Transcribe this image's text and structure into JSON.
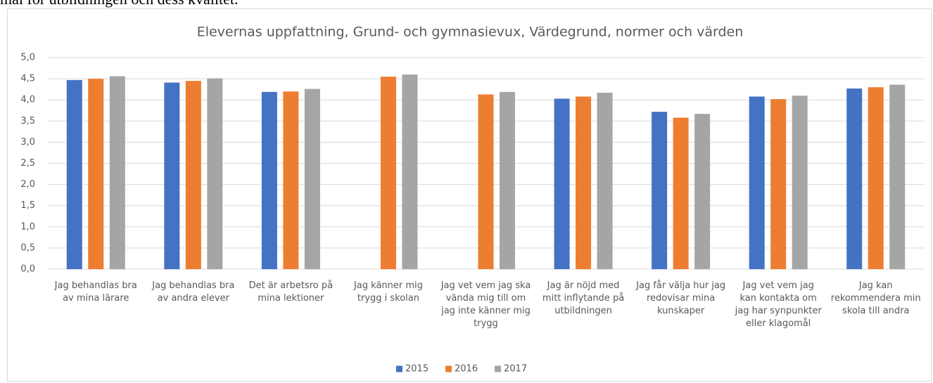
{
  "document": {
    "text": "mål för utbildningen och dess kvalitet."
  },
  "chart_data": {
    "type": "bar",
    "title": "Elevernas uppfattning, Grund- och gymnasievux, Värdegrund, normer och värden",
    "categories": [
      "Jag behandlas bra av mina lärare",
      "Jag behandlas bra av andra elever",
      "Det är arbetsro på mina lektioner",
      "Jag känner mig trygg i skolan",
      "Jag vet vem jag ska vända mig till om jag inte känner mig trygg",
      "Jag är nöjd med mitt inflytande på utbildningen",
      "Jag får välja hur jag redovisar mina kunskaper",
      "Jag vet vem jag kan kontakta om jag har synpunkter eller klagomål",
      "Jag kan rekommendera min skola till andra"
    ],
    "series": [
      {
        "name": "2015",
        "color": "#4472c4",
        "values": [
          4.47,
          4.41,
          4.19,
          null,
          null,
          4.03,
          3.72,
          4.08,
          4.27
        ]
      },
      {
        "name": "2016",
        "color": "#ed7d31",
        "values": [
          4.5,
          4.45,
          4.2,
          4.55,
          4.13,
          4.08,
          3.58,
          4.02,
          4.3
        ]
      },
      {
        "name": "2017",
        "color": "#a5a5a5",
        "values": [
          4.56,
          4.51,
          4.26,
          4.6,
          4.19,
          4.17,
          3.67,
          4.1,
          4.36
        ]
      }
    ],
    "ylim": [
      0,
      5
    ],
    "yticks": [
      {
        "value": 0,
        "label": "0,0"
      },
      {
        "value": 0.5,
        "label": "0,5"
      },
      {
        "value": 1,
        "label": "1,0"
      },
      {
        "value": 1.5,
        "label": "1,5"
      },
      {
        "value": 2,
        "label": "2,0"
      },
      {
        "value": 2.5,
        "label": "2,5"
      },
      {
        "value": 3,
        "label": "3,0"
      },
      {
        "value": 3.5,
        "label": "3,5"
      },
      {
        "value": 4,
        "label": "4,0"
      },
      {
        "value": 4.5,
        "label": "4,5"
      },
      {
        "value": 5,
        "label": "5,0"
      }
    ],
    "grid": true,
    "legend": "bottom"
  }
}
